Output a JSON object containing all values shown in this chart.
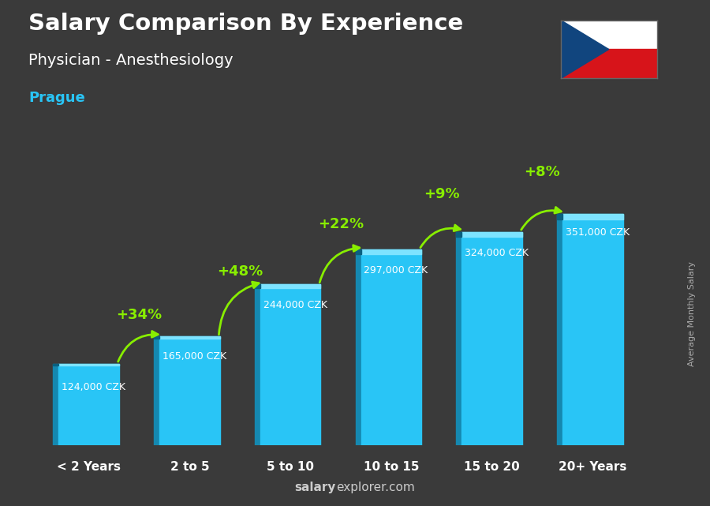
{
  "title_main": "Salary Comparison By Experience",
  "title_sub": "Physician - Anesthesiology",
  "title_city": "Prague",
  "categories": [
    "< 2 Years",
    "2 to 5",
    "5 to 10",
    "10 to 15",
    "15 to 20",
    "20+ Years"
  ],
  "values": [
    124000,
    165000,
    244000,
    297000,
    324000,
    351000
  ],
  "value_labels": [
    "124,000 CZK",
    "165,000 CZK",
    "244,000 CZK",
    "297,000 CZK",
    "324,000 CZK",
    "351,000 CZK"
  ],
  "pct_labels": [
    "+34%",
    "+48%",
    "+22%",
    "+9%",
    "+8%"
  ],
  "bar_color_main": "#29C5F6",
  "bar_color_dark": "#1588B0",
  "bar_color_light": "#7DE3FF",
  "bg_color": "#3a3a3a",
  "title_color": "#FFFFFF",
  "city_color": "#29C5F6",
  "pct_color": "#88EE00",
  "arrow_color": "#88EE00",
  "ylabel": "Average Monthly Salary",
  "footer_bold": "salary",
  "footer_regular": "explorer.com",
  "ylim_max": 430000,
  "bar_width": 0.6,
  "flag_white": "#FFFFFF",
  "flag_red": "#D7141A",
  "flag_blue": "#11457E"
}
